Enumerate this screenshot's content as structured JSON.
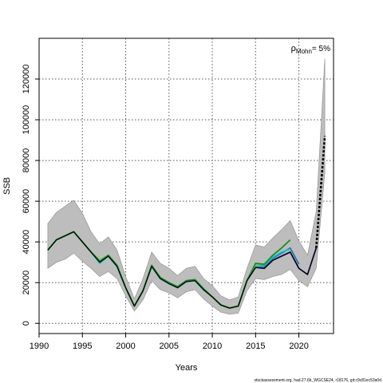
{
  "chart_data": {
    "type": "line",
    "xlabel": "Years",
    "ylabel": "SSB",
    "xlim": [
      1990,
      2024
    ],
    "ylim": [
      -5000,
      140000
    ],
    "x_ticks": [
      1990,
      1995,
      2000,
      2005,
      2010,
      2015,
      2020
    ],
    "y_ticks": [
      0,
      20000,
      40000,
      60000,
      80000,
      100000,
      120000
    ],
    "grid": true,
    "annotation": {
      "symbol": "ρ",
      "subscript": "Mohn",
      "value": "= 5%"
    },
    "credit": "stockassessment.org, had.27.6b_WGCSE24, r18176, git:c9c81ec53a0d",
    "band": {
      "color": "#bdbdbd",
      "x": [
        1991,
        1992,
        1993,
        1994,
        1995,
        1996,
        1997,
        1998,
        1999,
        2000,
        2001,
        2002,
        2003,
        2004,
        2005,
        2006,
        2007,
        2008,
        2009,
        2010,
        2011,
        2012,
        2013,
        2014,
        2015,
        2016,
        2017,
        2018,
        2019,
        2020,
        2021,
        2022,
        2023
      ],
      "upper": [
        49000,
        54500,
        57500,
        60500,
        54000,
        45000,
        39000,
        42500,
        36000,
        23000,
        12000,
        22000,
        35000,
        29500,
        27000,
        23500,
        27000,
        28000,
        22000,
        18500,
        13500,
        11500,
        13000,
        27000,
        38500,
        37500,
        42000,
        46000,
        50500,
        40500,
        33500,
        55000,
        130000
      ],
      "lower": [
        27000,
        30000,
        31500,
        34500,
        30500,
        27000,
        23000,
        25500,
        22000,
        13500,
        6000,
        11500,
        21000,
        16500,
        15000,
        12500,
        15500,
        16500,
        12000,
        8500,
        5500,
        4500,
        5000,
        16000,
        22000,
        21500,
        23000,
        24000,
        26500,
        21000,
        18000,
        27000,
        74000
      ]
    },
    "series": [
      {
        "color": "#2b2d8c",
        "values": [
          36000,
          41000,
          43000,
          45000,
          40000,
          35000,
          30000,
          33000,
          28000,
          17500,
          8500,
          16000,
          28000,
          22000,
          19500,
          17500,
          20500,
          21000,
          16500,
          13000,
          9000,
          7500,
          8500,
          21000,
          27500,
          27000,
          31000,
          33000,
          35000,
          27000,
          24000,
          37000,
          null
        ]
      },
      {
        "color": "#1f77b4",
        "values": [
          36000,
          41000,
          43000,
          45000,
          40000,
          35000,
          30000,
          33000,
          28000,
          17500,
          8500,
          16000,
          28000,
          22000,
          19500,
          17500,
          20500,
          21000,
          16500,
          13000,
          9000,
          7500,
          8500,
          21000,
          28000,
          28000,
          32000,
          34500,
          37000,
          29000,
          null,
          null,
          null
        ]
      },
      {
        "color": "#17becf",
        "values": [
          36000,
          41000,
          43000,
          45000,
          40000,
          35000,
          29500,
          33000,
          28000,
          17500,
          8500,
          16000,
          28000,
          22000,
          19500,
          17500,
          20500,
          21000,
          16500,
          13000,
          9000,
          7500,
          8500,
          21000,
          28000,
          28500,
          32500,
          35000,
          36500,
          null,
          null,
          null,
          null
        ]
      },
      {
        "color": "#8fbc3a",
        "values": [
          36000,
          41000,
          43000,
          45000,
          40000,
          35000,
          31000,
          33500,
          28500,
          17500,
          8500,
          16000,
          28500,
          22500,
          20000,
          18000,
          21000,
          21500,
          17000,
          13000,
          9000,
          7500,
          8500,
          21000,
          29000,
          29000,
          33500,
          37000,
          null,
          null,
          null,
          null,
          null
        ]
      },
      {
        "color": "#228b22",
        "values": [
          36000,
          41000,
          43000,
          45000,
          40000,
          35000,
          30500,
          33500,
          28500,
          17500,
          8500,
          16000,
          28500,
          22500,
          20000,
          18000,
          21000,
          21500,
          17000,
          13000,
          9000,
          7500,
          8500,
          21000,
          29500,
          29000,
          33500,
          37000,
          41000,
          null,
          null,
          null,
          null
        ]
      },
      {
        "color": "#000000",
        "values": [
          36000,
          41000,
          43000,
          45000,
          40000,
          35000,
          30000,
          33000,
          28000,
          17500,
          8500,
          16000,
          28000,
          22000,
          19500,
          17500,
          20500,
          21000,
          16500,
          13000,
          9000,
          7500,
          8500,
          21000,
          27500,
          27000,
          31000,
          33000,
          35000,
          27000,
          24000,
          37000,
          92000
        ],
        "style": "dashed-last"
      }
    ]
  }
}
